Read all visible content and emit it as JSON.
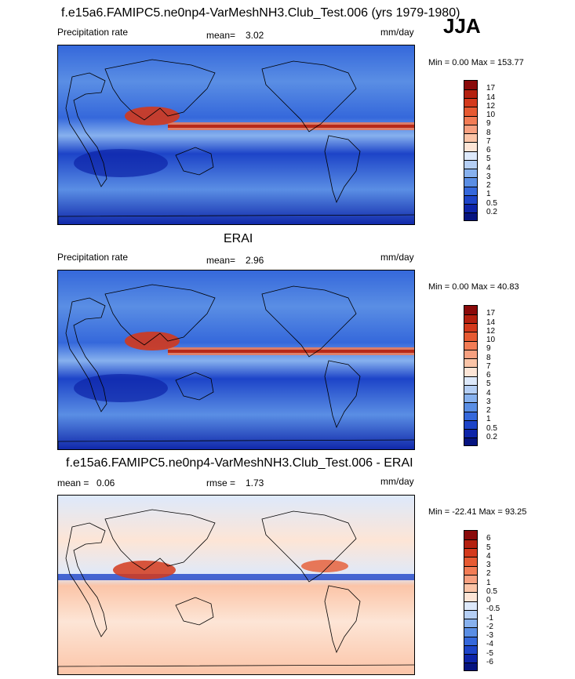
{
  "header": {
    "title": "f.e15a6.FAMIPC5.ne0np4-VarMeshNH3.Club_Test.006 (yrs 1979-1980)",
    "season": "JJA"
  },
  "panels": [
    {
      "left_label": "Precipitation rate",
      "stat_label": "mean=",
      "stat_value": "3.02",
      "units": "mm/day",
      "minmax": "Min =   0.00 Max = 153.77",
      "colorbar_labels": [
        "17",
        "14",
        "12",
        "10",
        "9",
        "8",
        "7",
        "6",
        "5",
        "4",
        "3",
        "2",
        "1",
        "0.5",
        "0.2"
      ]
    },
    {
      "title": "ERAI",
      "left_label": "Precipitation rate",
      "stat_label": "mean=",
      "stat_value": "2.96",
      "units": "mm/day",
      "minmax": "Min =   0.00 Max = 40.83",
      "colorbar_labels": [
        "17",
        "14",
        "12",
        "10",
        "9",
        "8",
        "7",
        "6",
        "5",
        "4",
        "3",
        "2",
        "1",
        "0.5",
        "0.2"
      ]
    },
    {
      "title": "f.e15a6.FAMIPC5.ne0np4-VarMeshNH3.Club_Test.006 - ERAI",
      "left_label": "mean =",
      "left_value": "0.06",
      "stat_label": "rmse =",
      "stat_value": "1.73",
      "units": "mm/day",
      "minmax": "Min = -22.41 Max =  93.25",
      "colorbar_labels": [
        "6",
        "5",
        "4",
        "3",
        "2",
        "1",
        "0.5",
        "0",
        "-0.5",
        "-1",
        "-2",
        "-3",
        "-4",
        "-5",
        "-6"
      ]
    }
  ],
  "colors": {
    "precip_scale": [
      "#8a0a0a",
      "#b4200f",
      "#d3391c",
      "#e65a32",
      "#f27c55",
      "#f7a080",
      "#fbc4a7",
      "#fde5d6",
      "#dde9fb",
      "#b5cff5",
      "#87b1ee",
      "#5a8ee4",
      "#3568db",
      "#1d44c8",
      "#0d24a8",
      "#061480"
    ],
    "diff_scale": [
      "#8a0a0a",
      "#b4200f",
      "#d3391c",
      "#e65a32",
      "#f27c55",
      "#f7a080",
      "#fbc4a7",
      "#fde5d6",
      "#dde9fb",
      "#b5cff5",
      "#87b1ee",
      "#5a8ee4",
      "#3568db",
      "#1d44c8",
      "#0d24a8",
      "#061480"
    ]
  }
}
